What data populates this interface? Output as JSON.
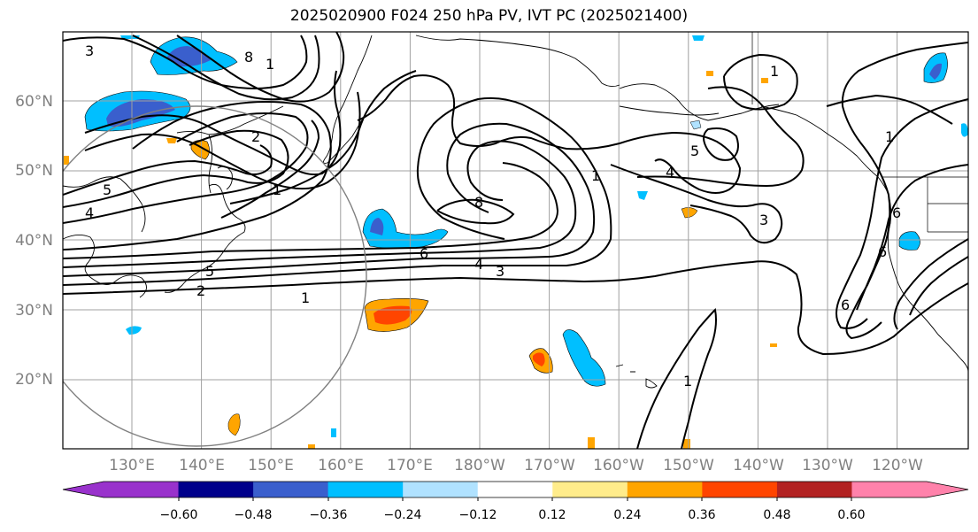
{
  "title": "2025020900 F024 250 hPa PV, IVT PC (2025021400)",
  "lat_labels": [
    "60°N",
    "50°N",
    "40°N",
    "30°N",
    "20°N"
  ],
  "lon_labels": [
    "130°E",
    "140°E",
    "150°E",
    "160°E",
    "170°E",
    "180°W",
    "170°W",
    "160°W",
    "150°W",
    "140°W",
    "130°W",
    "120°W"
  ],
  "colorbar": {
    "ticks": [
      "−0.60",
      "−0.48",
      "−0.36",
      "−0.24",
      "−0.12",
      "0.12",
      "0.24",
      "0.36",
      "0.48",
      "0.60"
    ],
    "colors": [
      "#9932cc",
      "#00008b",
      "#3a5fcd",
      "#00bfff",
      "#b0e2ff",
      "#ffffff",
      "#ffec8b",
      "#ffa500",
      "#ff4500",
      "#b22222",
      "#ff82ab"
    ]
  },
  "pv_contour_labels": [
    {
      "id": "a",
      "text": "3"
    },
    {
      "id": "b",
      "text": "8"
    },
    {
      "id": "c",
      "text": "1"
    },
    {
      "id": "d",
      "text": "2"
    },
    {
      "id": "e",
      "text": "1"
    },
    {
      "id": "f",
      "text": "5"
    },
    {
      "id": "g",
      "text": "4"
    },
    {
      "id": "h",
      "text": "8"
    },
    {
      "id": "i",
      "text": "6"
    },
    {
      "id": "j",
      "text": "4"
    },
    {
      "id": "k",
      "text": "3"
    },
    {
      "id": "l",
      "text": "2"
    },
    {
      "id": "m",
      "text": "1"
    },
    {
      "id": "n",
      "text": "5"
    },
    {
      "id": "o",
      "text": "4"
    },
    {
      "id": "p",
      "text": "3"
    },
    {
      "id": "q",
      "text": "1"
    },
    {
      "id": "r",
      "text": "1"
    },
    {
      "id": "s",
      "text": "6"
    },
    {
      "id": "t",
      "text": "6"
    },
    {
      "id": "u",
      "text": "6"
    },
    {
      "id": "v",
      "text": "1"
    },
    {
      "id": "w",
      "text": "1"
    },
    {
      "id": "x",
      "text": "5"
    }
  ],
  "colors": {
    "contour": "#000000",
    "grid": "#a0a0a0",
    "coast": "#000000",
    "circle": "#808080"
  }
}
